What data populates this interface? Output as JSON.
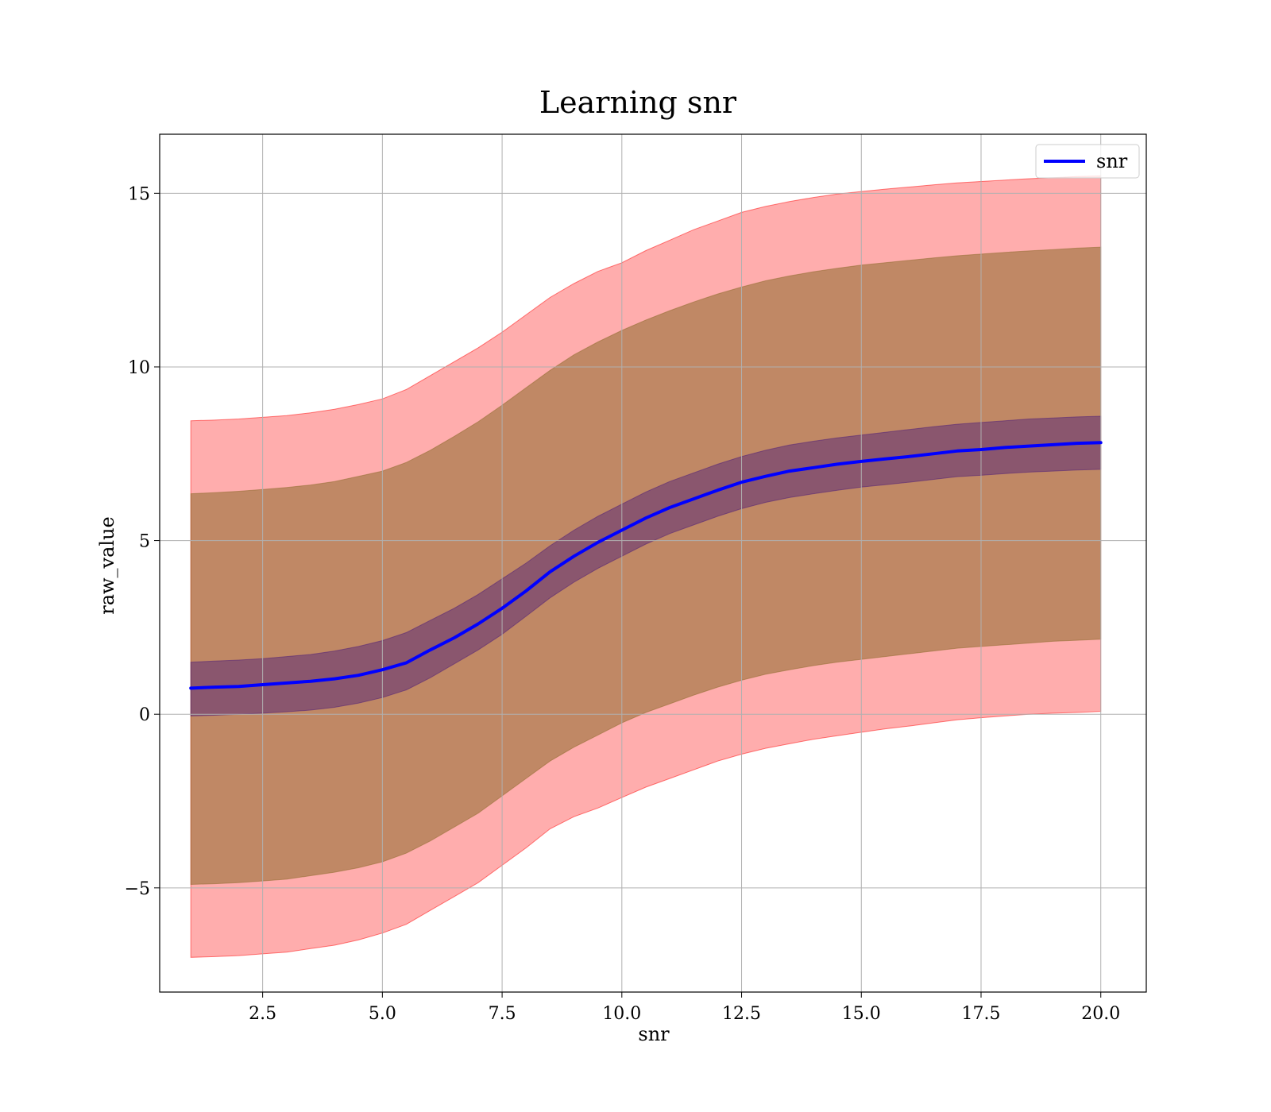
{
  "chart_data": {
    "type": "line",
    "title": "Learning snr",
    "xlabel": "snr",
    "ylabel": "raw_value",
    "xlim": [
      0.35,
      20.95
    ],
    "ylim": [
      -8.0,
      16.7
    ],
    "xticks": [
      2.5,
      5.0,
      7.5,
      10.0,
      12.5,
      15.0,
      17.5,
      20.0
    ],
    "xtick_labels": [
      "2.5",
      "5.0",
      "7.5",
      "10.0",
      "12.5",
      "15.0",
      "17.5",
      "20.0"
    ],
    "yticks": [
      -5,
      0,
      5,
      10,
      15
    ],
    "ytick_labels": [
      "−5",
      "0",
      "5",
      "10",
      "15"
    ],
    "grid": true,
    "legend": {
      "position": "top-right",
      "entries": [
        "snr"
      ]
    },
    "colors": {
      "line": "#0000ff",
      "outer_band": "#ff0000",
      "middle_band": "#8c6a2a",
      "inner_band": "#4a1a7a",
      "grid": "#b0b0b0"
    },
    "x": [
      1.0,
      1.5,
      2.0,
      2.5,
      3.0,
      3.5,
      4.0,
      4.5,
      5.0,
      5.5,
      6.0,
      6.5,
      7.0,
      7.5,
      8.0,
      8.5,
      9.0,
      9.5,
      10.0,
      10.5,
      11.0,
      11.5,
      12.0,
      12.5,
      13.0,
      13.5,
      14.0,
      14.5,
      15.0,
      15.5,
      16.0,
      16.5,
      17.0,
      17.5,
      18.0,
      18.5,
      19.0,
      19.5,
      20.0
    ],
    "series": [
      {
        "name": "snr",
        "values": [
          0.75,
          0.78,
          0.8,
          0.85,
          0.9,
          0.95,
          1.02,
          1.12,
          1.28,
          1.48,
          1.85,
          2.2,
          2.6,
          3.05,
          3.55,
          4.1,
          4.55,
          4.95,
          5.3,
          5.65,
          5.95,
          6.2,
          6.45,
          6.68,
          6.85,
          7.0,
          7.1,
          7.2,
          7.28,
          7.35,
          7.42,
          7.5,
          7.58,
          7.62,
          7.68,
          7.72,
          7.76,
          7.8,
          7.82
        ]
      }
    ],
    "bands": [
      {
        "lower": [
          -7.0,
          -6.98,
          -6.95,
          -6.9,
          -6.85,
          -6.75,
          -6.65,
          -6.5,
          -6.3,
          -6.05,
          -5.65,
          -5.25,
          -4.85,
          -4.35,
          -3.85,
          -3.3,
          -2.95,
          -2.7,
          -2.4,
          -2.1,
          -1.85,
          -1.6,
          -1.35,
          -1.15,
          -0.98,
          -0.85,
          -0.72,
          -0.62,
          -0.52,
          -0.42,
          -0.34,
          -0.25,
          -0.16,
          -0.1,
          -0.05,
          0.0,
          0.03,
          0.05,
          0.08
        ],
        "upper": [
          8.45,
          8.47,
          8.5,
          8.55,
          8.6,
          8.68,
          8.78,
          8.92,
          9.08,
          9.35,
          9.75,
          10.15,
          10.55,
          11.0,
          11.5,
          12.0,
          12.4,
          12.75,
          13.0,
          13.35,
          13.65,
          13.95,
          14.2,
          14.45,
          14.62,
          14.76,
          14.88,
          14.98,
          15.05,
          15.12,
          15.18,
          15.24,
          15.3,
          15.34,
          15.38,
          15.42,
          15.45,
          15.48,
          15.5
        ]
      },
      {
        "lower": [
          -4.9,
          -4.88,
          -4.85,
          -4.8,
          -4.75,
          -4.65,
          -4.55,
          -4.42,
          -4.25,
          -4.0,
          -3.65,
          -3.25,
          -2.85,
          -2.35,
          -1.85,
          -1.35,
          -0.95,
          -0.6,
          -0.25,
          0.05,
          0.3,
          0.55,
          0.78,
          0.98,
          1.15,
          1.28,
          1.4,
          1.5,
          1.58,
          1.66,
          1.74,
          1.82,
          1.9,
          1.95,
          2.0,
          2.05,
          2.1,
          2.13,
          2.16
        ],
        "upper": [
          6.35,
          6.38,
          6.42,
          6.47,
          6.53,
          6.6,
          6.7,
          6.85,
          7.0,
          7.25,
          7.6,
          8.0,
          8.42,
          8.9,
          9.4,
          9.9,
          10.35,
          10.72,
          11.05,
          11.35,
          11.62,
          11.87,
          12.1,
          12.3,
          12.48,
          12.62,
          12.74,
          12.84,
          12.93,
          13.0,
          13.07,
          13.14,
          13.2,
          13.25,
          13.3,
          13.34,
          13.38,
          13.42,
          13.45
        ]
      },
      {
        "lower": [
          -0.05,
          -0.03,
          0.0,
          0.03,
          0.07,
          0.12,
          0.2,
          0.32,
          0.48,
          0.7,
          1.05,
          1.45,
          1.85,
          2.3,
          2.82,
          3.35,
          3.8,
          4.2,
          4.55,
          4.9,
          5.2,
          5.45,
          5.7,
          5.92,
          6.1,
          6.24,
          6.35,
          6.45,
          6.54,
          6.61,
          6.68,
          6.76,
          6.84,
          6.88,
          6.93,
          6.97,
          7.0,
          7.03,
          7.05
        ],
        "upper": [
          1.5,
          1.53,
          1.56,
          1.6,
          1.66,
          1.72,
          1.82,
          1.95,
          2.12,
          2.35,
          2.7,
          3.05,
          3.45,
          3.9,
          4.35,
          4.85,
          5.3,
          5.7,
          6.05,
          6.4,
          6.7,
          6.95,
          7.2,
          7.42,
          7.6,
          7.75,
          7.86,
          7.96,
          8.04,
          8.12,
          8.2,
          8.28,
          8.35,
          8.4,
          8.45,
          8.5,
          8.53,
          8.56,
          8.58
        ]
      }
    ]
  }
}
